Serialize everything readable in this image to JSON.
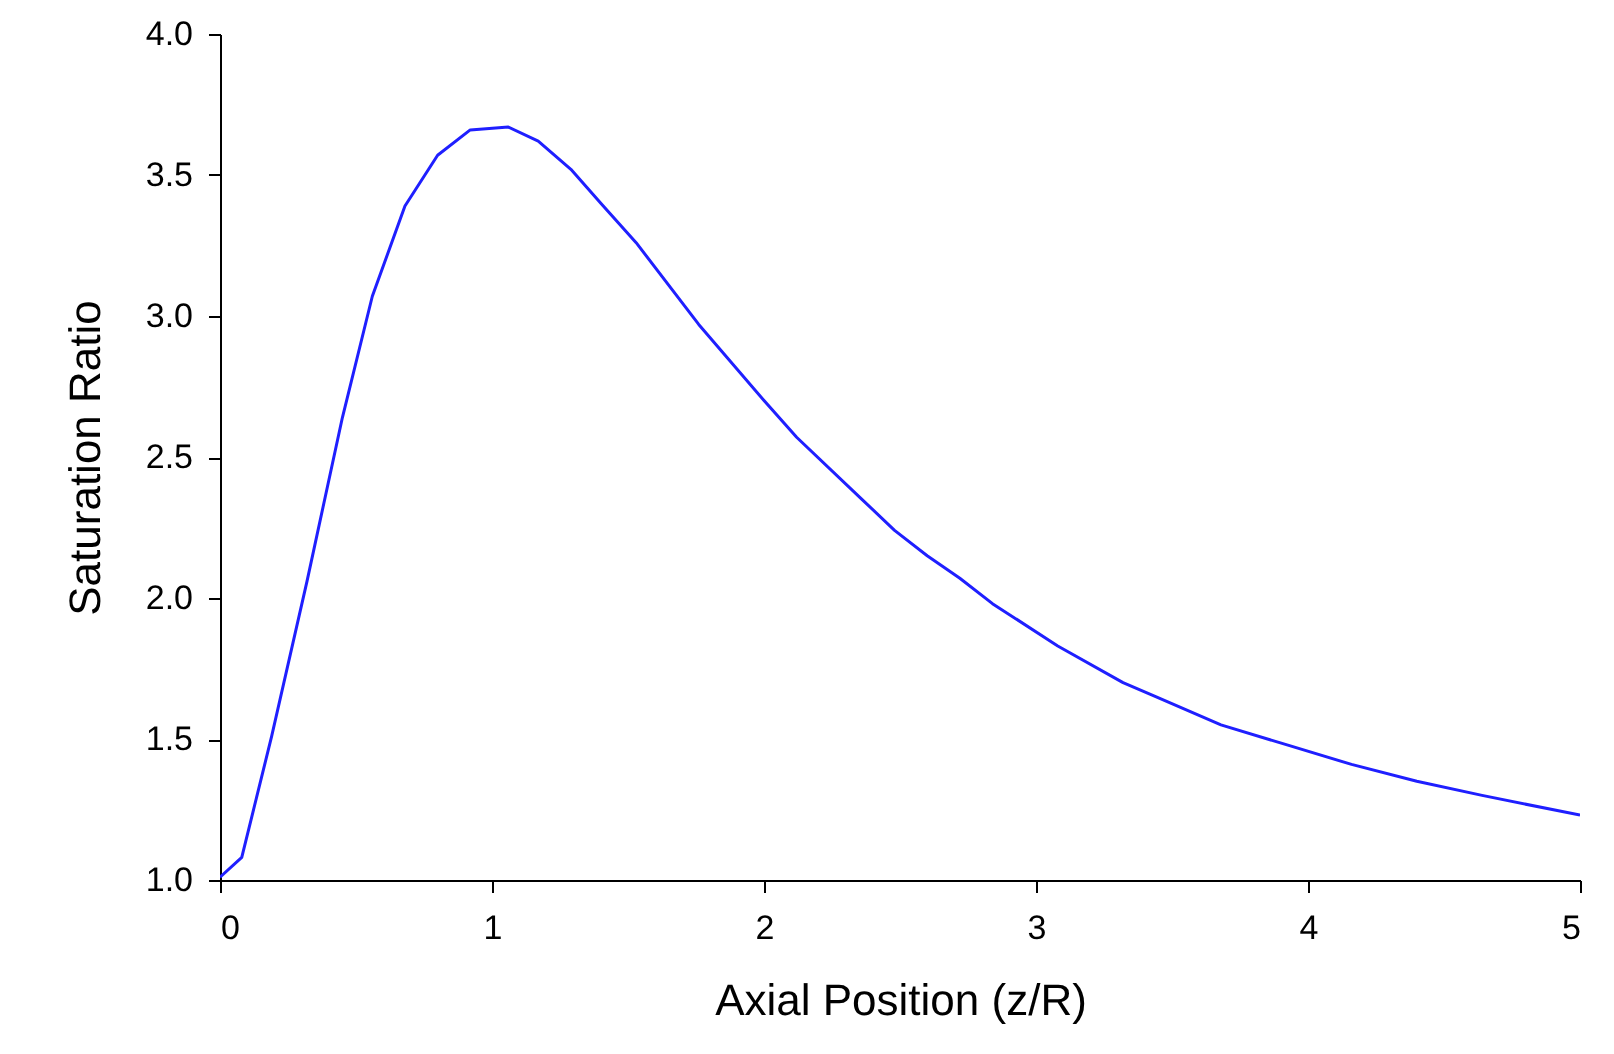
{
  "chart_data": {
    "type": "line",
    "xlabel": "Axial Position (z/R)",
    "ylabel": "Saturation Ratio",
    "x": [
      0,
      0.08,
      0.19,
      0.32,
      0.45,
      0.56,
      0.68,
      0.8,
      0.92,
      1.06,
      1.17,
      1.29,
      1.4,
      1.53,
      1.76,
      2.0,
      2.12,
      2.36,
      2.48,
      2.6,
      2.72,
      2.84,
      3.08,
      3.32,
      3.44,
      3.68,
      3.92,
      4.16,
      4.4,
      4.64,
      5.0
    ],
    "series": [
      {
        "color": "#1f1fff",
        "values": [
          1.01,
          1.08,
          1.51,
          2.06,
          2.64,
          3.07,
          3.39,
          3.57,
          3.66,
          3.67,
          3.62,
          3.52,
          3.4,
          3.26,
          2.97,
          2.7,
          2.57,
          2.35,
          2.24,
          2.15,
          2.07,
          1.98,
          1.83,
          1.7,
          1.65,
          1.55,
          1.48,
          1.41,
          1.35,
          1.3,
          1.23
        ]
      }
    ],
    "xlim": [
      0,
      5
    ],
    "xticks": [
      0,
      1,
      2,
      3,
      4,
      5
    ],
    "ylim": [
      1,
      4
    ],
    "yticks": [
      {
        "value": 1,
        "label": "1.0"
      },
      {
        "value": 1.5,
        "label": "1.5"
      },
      {
        "value": 2,
        "label": "2.0"
      },
      {
        "value": 2.5,
        "label": "2.5"
      },
      {
        "value": 3,
        "label": "3.0"
      },
      {
        "value": 3.5,
        "label": "3.5"
      },
      {
        "value": 4,
        "label": "4.0"
      }
    ],
    "grid": false
  }
}
